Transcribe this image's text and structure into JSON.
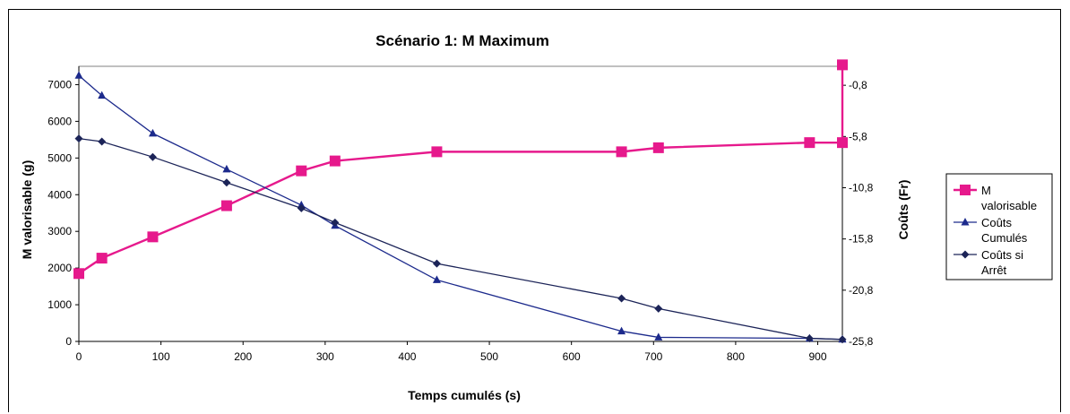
{
  "chart_data": {
    "type": "line",
    "title": "Scénario 1: M Maximum",
    "xlabel": "Temps cumulés (s)",
    "ylabel": "M valorisable (g)",
    "y2label": "Coûts (Fr)",
    "xlim": [
      0,
      930
    ],
    "ylim": [
      0,
      7500
    ],
    "y2lim": [
      -25.8,
      1.05
    ],
    "x_ticks": [
      "0",
      "100",
      "200",
      "300",
      "400",
      "500",
      "600",
      "700",
      "800",
      "900"
    ],
    "y_ticks": [
      "0",
      "1000",
      "2000",
      "3000",
      "4000",
      "5000",
      "6000",
      "7000"
    ],
    "y2_ticks": [
      "-0,8",
      "-5,8",
      "-10,8",
      "-15,8",
      "-20,8",
      "-25,8"
    ],
    "grid": false,
    "legend_position": "right",
    "series": [
      {
        "name": "M valorisable",
        "axis": "left",
        "color": "#e6198c",
        "marker": "square",
        "points": [
          [
            0,
            1850
          ],
          [
            28,
            2270
          ],
          [
            90,
            2850
          ],
          [
            180,
            3700
          ],
          [
            271,
            4650
          ],
          [
            312,
            4920
          ],
          [
            436,
            5170
          ],
          [
            661,
            5170
          ],
          [
            706,
            5280
          ],
          [
            890,
            5420
          ],
          [
            930,
            5420
          ],
          [
            930,
            7540
          ]
        ]
      },
      {
        "name": "Coûts Cumulés",
        "axis": "right",
        "color": "#1c2a8c",
        "marker": "triangle",
        "points": [
          [
            0,
            0.15
          ],
          [
            28,
            -1.8
          ],
          [
            90,
            -5.5
          ],
          [
            180,
            -9.0
          ],
          [
            271,
            -12.5
          ],
          [
            312,
            -14.5
          ],
          [
            436,
            -19.8
          ],
          [
            661,
            -24.8
          ],
          [
            706,
            -25.4
          ],
          [
            890,
            -25.5
          ],
          [
            930,
            -25.6
          ]
        ]
      },
      {
        "name": "Coûts si Arrêt",
        "axis": "right",
        "color": "#1c2458",
        "marker": "diamond",
        "points": [
          [
            0,
            -6.0
          ],
          [
            28,
            -6.3
          ],
          [
            90,
            -7.8
          ],
          [
            180,
            -10.3
          ],
          [
            271,
            -12.8
          ],
          [
            312,
            -14.2
          ],
          [
            436,
            -18.2
          ],
          [
            661,
            -21.6
          ],
          [
            706,
            -22.6
          ],
          [
            890,
            -25.5
          ],
          [
            930,
            -25.6
          ]
        ]
      }
    ],
    "legend": [
      {
        "label_lines": [
          "M",
          "valorisable"
        ],
        "series": 0
      },
      {
        "label_lines": [
          "Coûts",
          "Cumulés"
        ],
        "series": 1
      },
      {
        "label_lines": [
          "Coûts si",
          "Arrêt"
        ],
        "series": 2
      }
    ]
  }
}
